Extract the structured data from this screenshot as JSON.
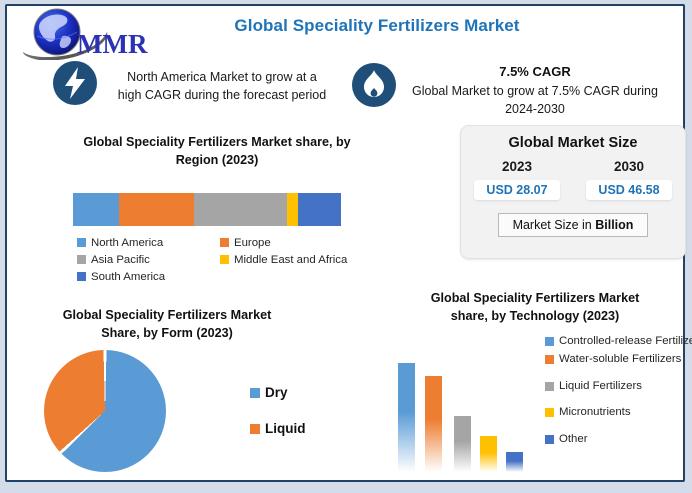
{
  "header": {
    "title": "Global Speciality Fertilizers Market",
    "logo_text": "MMR"
  },
  "callouts": [
    {
      "icon": "lightning-icon",
      "lines": [
        "North America Market to grow at a",
        "high CAGR during the forecast period"
      ]
    },
    {
      "icon": "flame-icon",
      "heading": "7.5% CAGR",
      "lines": [
        "Global Market to grow at 7.5% CAGR during",
        "2024-2030"
      ]
    }
  ],
  "market_size": {
    "title": "Global Market Size",
    "columns": [
      {
        "year": "2023",
        "value": "USD 28.07"
      },
      {
        "year": "2030",
        "value": "USD 46.58"
      }
    ],
    "footnote_prefix": "Market Size in ",
    "footnote_bold": "Billion"
  },
  "colors": {
    "title_blue": "#1F74B8",
    "frame_border": "#1F4266",
    "icon_circle": "#1F4E79",
    "value_text": "#1F74B8"
  },
  "chart_data": [
    {
      "type": "bar",
      "variant": "horizontal-stacked",
      "title": "Global Speciality Fertilizers Market share, by Region (2023)",
      "title_lines": [
        "Global Speciality Fertilizers Market share, by",
        "Region (2023)"
      ],
      "categories": [
        "North America",
        "Europe",
        "Asia Pacific",
        "Middle East and Africa",
        "South America"
      ],
      "values": [
        17,
        28,
        35,
        4,
        16
      ],
      "unit": "% share, estimated from segment widths",
      "colors": [
        "#5B9BD5",
        "#ED7D31",
        "#A5A5A5",
        "#FFC000",
        "#4472C4"
      ],
      "legend_position": "bottom",
      "axes_visible": false
    },
    {
      "type": "pie",
      "title": "Global Speciality Fertilizers Market Share, by Form (2023)",
      "title_lines": [
        "Global Speciality Fertilizers Market",
        "Share, by Form (2023)"
      ],
      "categories": [
        "Dry",
        "Liquid"
      ],
      "values": [
        63,
        37
      ],
      "unit": "% share, estimated from slice angles",
      "colors": [
        "#5B9BD5",
        "#ED7D31"
      ],
      "legend_position": "right",
      "start_angle_deg": 0
    },
    {
      "type": "bar",
      "variant": "vertical",
      "title": "Global Speciality Fertilizers Market share, by Technology (2023)",
      "title_lines": [
        "Global Speciality Fertilizers Market",
        "share, by Technology (2023)"
      ],
      "categories": [
        "Controlled-release Fertilizers",
        "Water-soluble Fertilizers",
        "Liquid Fertilizers",
        "Micronutrients",
        "Other"
      ],
      "values": [
        33,
        29,
        17,
        11,
        6
      ],
      "unit": "% share, estimated from bar heights",
      "colors": [
        "#5B9BD5",
        "#ED7D31",
        "#A5A5A5",
        "#FFC000",
        "#4472C4"
      ],
      "legend_position": "right",
      "axes_visible": false
    }
  ]
}
